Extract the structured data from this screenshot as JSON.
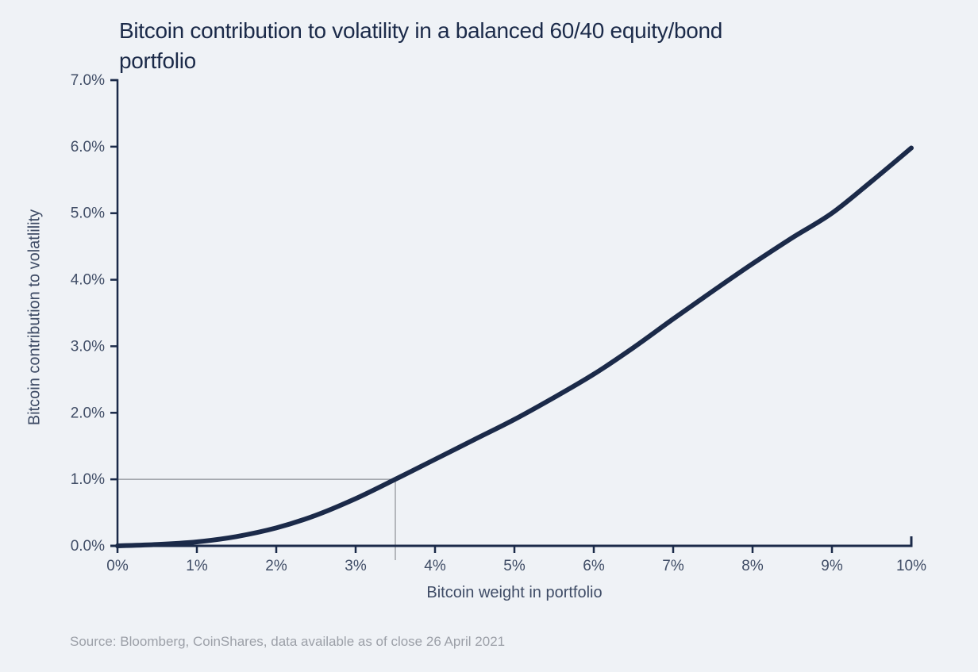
{
  "title_lines": [
    "Bitcoin contribution to volatility in a balanced 60/40 equity/bond",
    "portfolio"
  ],
  "source": "Source: Bloomberg, CoinShares, data available as of close 26 April 2021",
  "colors": {
    "background": "#eff2f6",
    "navy": "#1b2a49",
    "tick_text": "#404d66",
    "reference_line": "#8c9096",
    "source_text": "#9ca0a8"
  },
  "chart_data": {
    "type": "line",
    "title": "Bitcoin contribution to volatility in a balanced 60/40 equity/bond portfolio",
    "xlabel": "Bitcoin weight in portfolio",
    "ylabel": "Bitcoin contribution to volatlility",
    "xlim": [
      0,
      10
    ],
    "ylim": [
      0,
      7
    ],
    "grid": false,
    "legend": "none",
    "x_tick_values": [
      0,
      1,
      2,
      3,
      4,
      5,
      6,
      7,
      8,
      9,
      10
    ],
    "x_tick_labels": [
      "0%",
      "1%",
      "2%",
      "3%",
      "4%",
      "5%",
      "6%",
      "7%",
      "8%",
      "9%",
      "10%"
    ],
    "y_tick_values": [
      0,
      1,
      2,
      3,
      4,
      5,
      6,
      7
    ],
    "y_tick_labels": [
      "0.0%",
      "1.0%",
      "2.0%",
      "3.0%",
      "4.0%",
      "5.0%",
      "6.0%",
      "7.0%"
    ],
    "reference_point": {
      "x": 3.5,
      "y": 1.0
    },
    "series": [
      {
        "name": "Bitcoin contribution to volatility",
        "x": [
          0,
          0.5,
          1,
          1.5,
          2,
          2.5,
          3,
          3.5,
          4,
          4.5,
          5,
          5.5,
          6,
          6.5,
          7,
          7.5,
          8,
          8.5,
          9,
          9.5,
          10
        ],
        "y": [
          0.0,
          0.02,
          0.06,
          0.14,
          0.27,
          0.46,
          0.71,
          1.0,
          1.3,
          1.6,
          1.9,
          2.23,
          2.58,
          2.98,
          3.41,
          3.83,
          4.24,
          4.63,
          5.0,
          5.48,
          5.98
        ]
      }
    ]
  }
}
